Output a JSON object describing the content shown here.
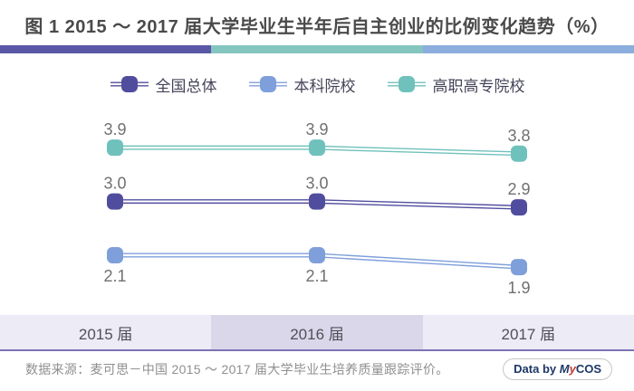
{
  "title": "图 1 2015 ～ 2017 届大学毕业生半年后自主创业的比例变化趋势（%）",
  "accent_bar_colors": [
    "#5a58a6",
    "#85c5c0",
    "#8caede"
  ],
  "chart_data": {
    "type": "line",
    "categories": [
      "2015 届",
      "2016 届",
      "2017 届"
    ],
    "series": [
      {
        "name": "全国总体",
        "values": [
          3.0,
          3.0,
          2.9
        ],
        "color": "#514d9e",
        "label_position": "above"
      },
      {
        "name": "本科院校",
        "values": [
          2.1,
          2.1,
          1.9
        ],
        "color": "#7f9fdb",
        "label_position": "below"
      },
      {
        "name": "高职高专院校",
        "values": [
          3.9,
          3.9,
          3.8
        ],
        "color": "#6fc1bc",
        "label_position": "above"
      }
    ],
    "value_labels_shown": true,
    "ylim": [
      1.5,
      4.6
    ],
    "grid": false,
    "legend_position": "top",
    "axis_band_colors": [
      "#edebf5",
      "#dbd7ea",
      "#edebf5"
    ],
    "axis_separator_color": "#7b73b5"
  },
  "footer": {
    "source_text": "数据来源：麦可思－中国 2015 ～ 2017 届大学毕业生培养质量跟踪评价。",
    "badge": {
      "prefix": "Data by ",
      "brand_m": "M",
      "brand_y": "y",
      "brand_rest": "COS",
      "navy_color": "#1c3766",
      "red_color": "#c23a31",
      "border_color": "#c6c6c6"
    }
  }
}
